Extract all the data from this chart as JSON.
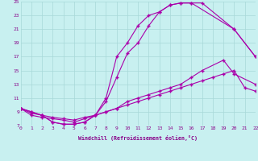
{
  "xlabel": "Windchill (Refroidissement éolien,°C)",
  "bg_color": "#c8f0f0",
  "grid_color": "#a8d8d8",
  "line_color": "#aa00aa",
  "xlim": [
    0,
    22
  ],
  "ylim": [
    7,
    25
  ],
  "xticks": [
    0,
    1,
    2,
    3,
    4,
    5,
    6,
    7,
    8,
    9,
    10,
    11,
    12,
    13,
    14,
    15,
    16,
    17,
    18,
    19,
    20,
    21,
    22
  ],
  "yticks": [
    7,
    9,
    11,
    13,
    15,
    17,
    19,
    21,
    23,
    25
  ],
  "line1_x": [
    0,
    1,
    2,
    3,
    4,
    5,
    6,
    7,
    8,
    9,
    10,
    11,
    12,
    13,
    14,
    15,
    16,
    17,
    20,
    22
  ],
  "line1_y": [
    9.5,
    9.0,
    8.5,
    7.5,
    7.2,
    7.2,
    7.5,
    8.5,
    10.5,
    14.0,
    17.5,
    19.0,
    21.5,
    23.5,
    24.5,
    24.8,
    24.8,
    24.8,
    21.0,
    17.0
  ],
  "line2_x": [
    0,
    1,
    2,
    3,
    4,
    5,
    6,
    7,
    8,
    9,
    10,
    11,
    12,
    13,
    14,
    15,
    16,
    20,
    22
  ],
  "line2_y": [
    9.5,
    9.0,
    8.5,
    7.5,
    7.2,
    7.2,
    7.5,
    8.5,
    11.0,
    17.0,
    19.0,
    21.5,
    23.0,
    23.5,
    24.5,
    24.8,
    24.8,
    21.0,
    17.0
  ],
  "line3_x": [
    0,
    1,
    2,
    3,
    4,
    5,
    6,
    7,
    8,
    9,
    10,
    11,
    12,
    13,
    14,
    15,
    16,
    17,
    19,
    20,
    22
  ],
  "line3_y": [
    9.5,
    8.5,
    8.2,
    8.0,
    7.8,
    7.5,
    8.0,
    8.5,
    9.0,
    9.5,
    10.5,
    11.0,
    11.5,
    12.0,
    12.5,
    13.0,
    14.0,
    15.0,
    16.5,
    14.5,
    13.0
  ],
  "line4_x": [
    0,
    1,
    2,
    3,
    4,
    5,
    6,
    7,
    8,
    9,
    10,
    11,
    12,
    13,
    14,
    15,
    16,
    17,
    18,
    19,
    20,
    21,
    22
  ],
  "line4_y": [
    9.5,
    8.8,
    8.5,
    8.2,
    8.0,
    7.8,
    8.2,
    8.5,
    9.0,
    9.5,
    10.0,
    10.5,
    11.0,
    11.5,
    12.0,
    12.5,
    13.0,
    13.5,
    14.0,
    14.5,
    15.0,
    12.5,
    12.0
  ]
}
